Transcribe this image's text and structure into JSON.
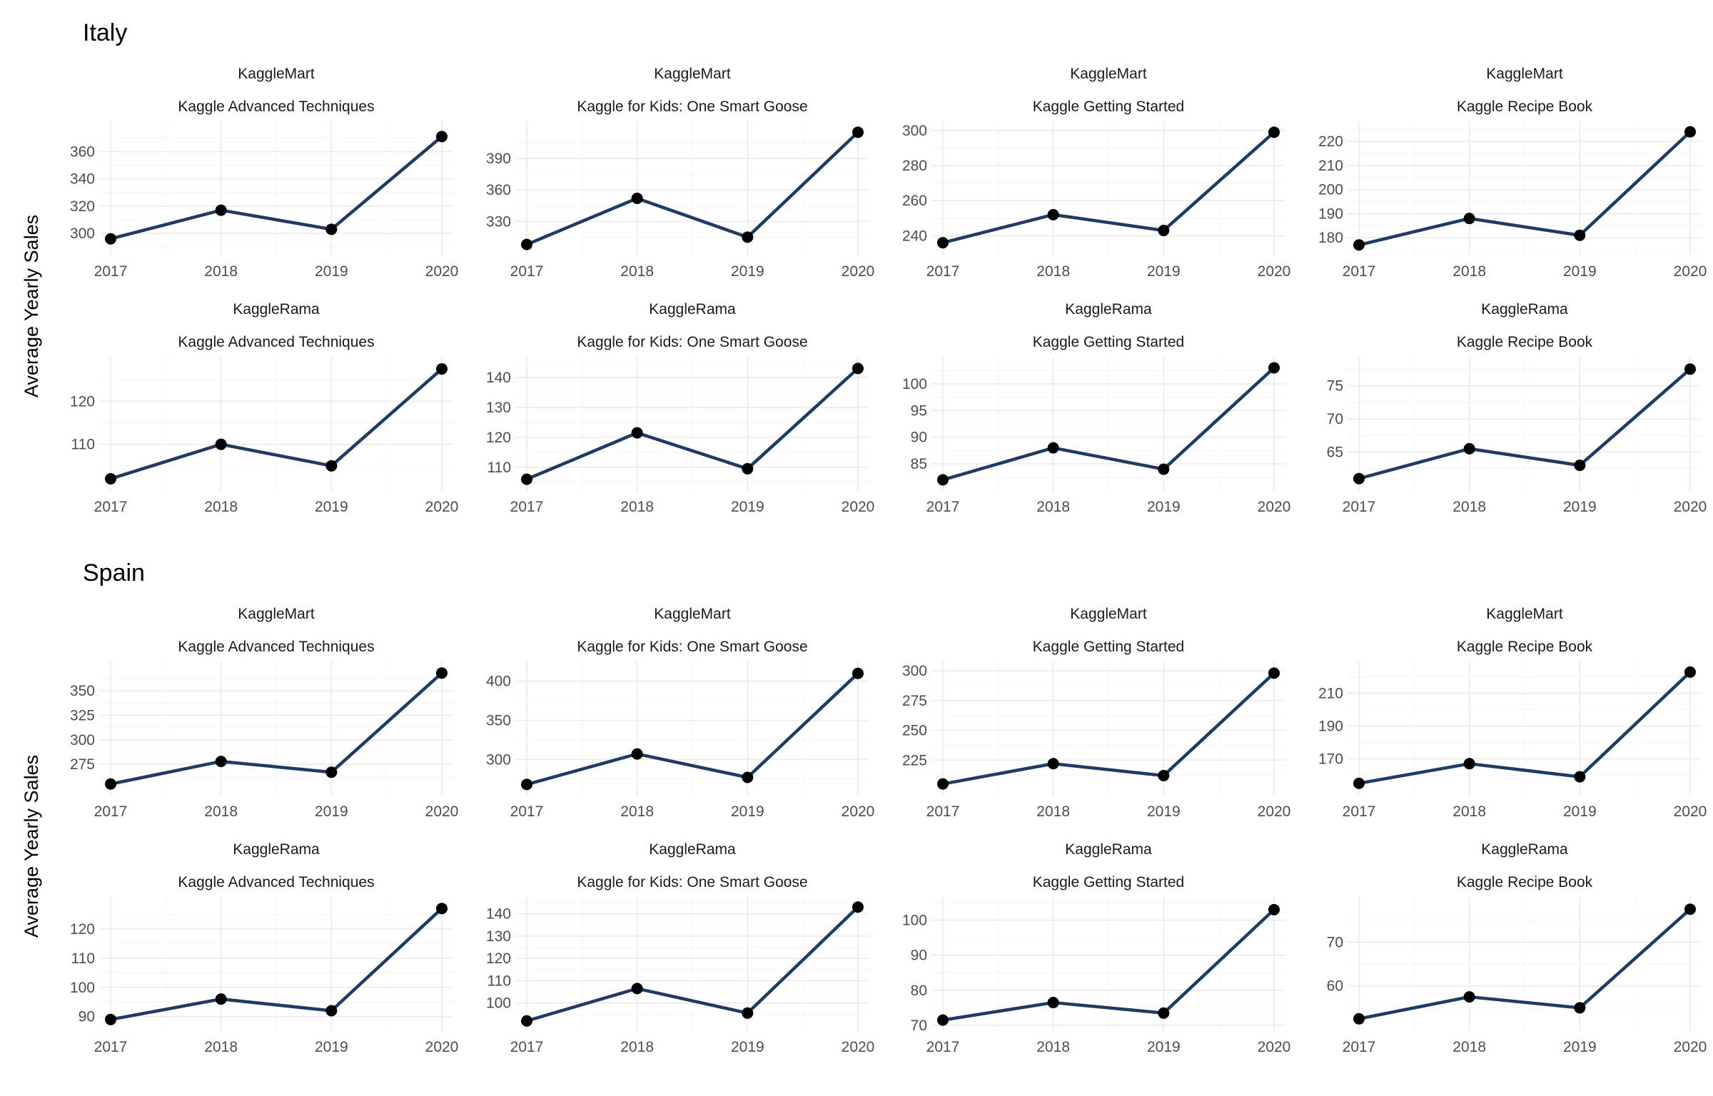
{
  "figure": {
    "y_axis_title": "Average Yearly Sales"
  },
  "chart_data": [
    {
      "country": "Italy",
      "type": "line",
      "ylabel": "Average Yearly Sales",
      "x": [
        "2017",
        "2018",
        "2019",
        "2020"
      ],
      "panels": [
        {
          "store": "KaggleMart",
          "product": "Kaggle Advanced Techniques",
          "values": [
            296,
            317,
            303,
            371
          ],
          "yticks": [
            300,
            320,
            340,
            360
          ],
          "ylim": [
            288,
            378
          ]
        },
        {
          "store": "KaggleMart",
          "product": "Kaggle for Kids: One Smart Goose",
          "values": [
            308,
            352,
            315,
            415
          ],
          "yticks": [
            330,
            360,
            390
          ],
          "ylim": [
            303,
            420
          ]
        },
        {
          "store": "KaggleMart",
          "product": "Kaggle Getting Started",
          "values": [
            236,
            252,
            243,
            299
          ],
          "yticks": [
            240,
            260,
            280,
            300
          ],
          "ylim": [
            232,
            302
          ]
        },
        {
          "store": "KaggleMart",
          "product": "Kaggle Recipe Book",
          "values": [
            177,
            188,
            181,
            224
          ],
          "yticks": [
            180,
            190,
            200,
            210,
            220
          ],
          "ylim": [
            175,
            226
          ]
        },
        {
          "store": "KaggleRama",
          "product": "Kaggle Advanced Techniques",
          "values": [
            102,
            110,
            105,
            127.5
          ],
          "yticks": [
            110,
            120
          ],
          "ylim": [
            100.5,
            129
          ]
        },
        {
          "store": "KaggleRama",
          "product": "Kaggle for Kids: One Smart Goose",
          "values": [
            106,
            121.5,
            109.5,
            143
          ],
          "yticks": [
            110,
            120,
            130,
            140
          ],
          "ylim": [
            104,
            145
          ]
        },
        {
          "store": "KaggleRama",
          "product": "Kaggle Getting Started",
          "values": [
            82,
            88,
            84,
            103
          ],
          "yticks": [
            85,
            90,
            95,
            100
          ],
          "ylim": [
            81,
            104
          ]
        },
        {
          "store": "KaggleRama",
          "product": "Kaggle Recipe Book",
          "values": [
            61,
            65.5,
            63,
            77.5
          ],
          "yticks": [
            65,
            70,
            75
          ],
          "ylim": [
            60,
            78.5
          ]
        }
      ]
    },
    {
      "country": "Spain",
      "type": "line",
      "ylabel": "Average Yearly Sales",
      "x": [
        "2017",
        "2018",
        "2019",
        "2020"
      ],
      "panels": [
        {
          "store": "KaggleMart",
          "product": "Kaggle Advanced Techniques",
          "values": [
            255,
            278,
            267,
            368
          ],
          "yticks": [
            275,
            300,
            325,
            350
          ],
          "ylim": [
            249,
            374
          ]
        },
        {
          "store": "KaggleMart",
          "product": "Kaggle for Kids: One Smart Goose",
          "values": [
            268,
            307,
            277,
            410
          ],
          "yticks": [
            300,
            350,
            400
          ],
          "ylim": [
            261,
            418
          ]
        },
        {
          "store": "KaggleMart",
          "product": "Kaggle Getting Started",
          "values": [
            205,
            222,
            212,
            298
          ],
          "yticks": [
            225,
            250,
            275,
            300
          ],
          "ylim": [
            200,
            303
          ]
        },
        {
          "store": "KaggleMart",
          "product": "Kaggle Recipe Book",
          "values": [
            155,
            167,
            159,
            223
          ],
          "yticks": [
            170,
            190,
            210
          ],
          "ylim": [
            151,
            226
          ]
        },
        {
          "store": "KaggleRama",
          "product": "Kaggle Advanced Techniques",
          "values": [
            89,
            96,
            92,
            127
          ],
          "yticks": [
            90,
            100,
            110,
            120
          ],
          "ylim": [
            87,
            129
          ]
        },
        {
          "store": "KaggleRama",
          "product": "Kaggle for Kids: One Smart Goose",
          "values": [
            92,
            106.5,
            95.5,
            143
          ],
          "yticks": [
            100,
            110,
            120,
            130,
            140
          ],
          "ylim": [
            90,
            145
          ]
        },
        {
          "store": "KaggleRama",
          "product": "Kaggle Getting Started",
          "values": [
            71.5,
            76.5,
            73.5,
            103
          ],
          "yticks": [
            70,
            80,
            90,
            100
          ],
          "ylim": [
            70,
            105
          ]
        },
        {
          "store": "KaggleRama",
          "product": "Kaggle Recipe Book",
          "values": [
            52.5,
            57.5,
            55,
            77.5
          ],
          "yticks": [
            60,
            70
          ],
          "ylim": [
            51,
            79
          ]
        }
      ]
    }
  ]
}
